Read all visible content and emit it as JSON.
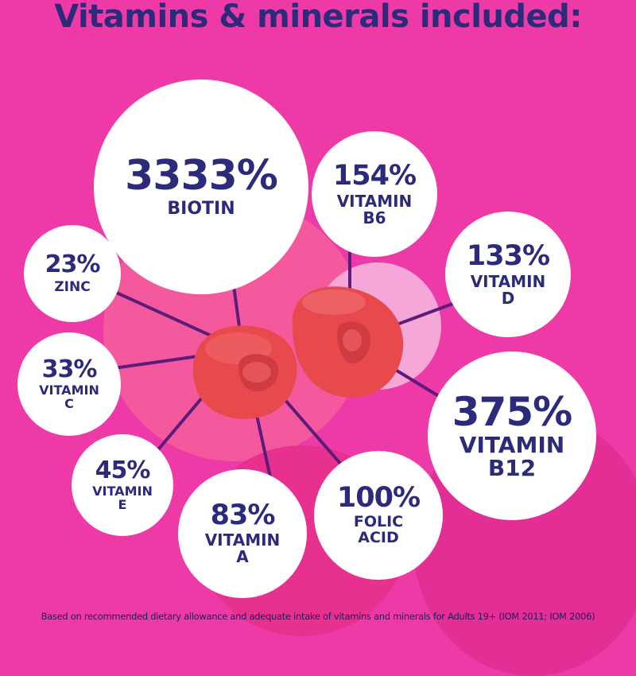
{
  "title": "Vitamins & minerals included:",
  "footnote": "Based on recommended dietary allowance and adequate intake of vitamins and minerals for Adults 19+ (IOM 2011; IOM 2006)",
  "colors": {
    "background": "#ee3aa6",
    "text": "#2c2a7a",
    "circle": "#ffffff",
    "spoke": "#5b1c7a",
    "gummy": "#e7494d"
  },
  "nutrients": {
    "biotin": {
      "percent": "3333%",
      "label": "BIOTIN"
    },
    "b6": {
      "percent": "154%",
      "label": "VITAMIN\nB6"
    },
    "d": {
      "percent": "133%",
      "label": "VITAMIN\nD"
    },
    "zinc": {
      "percent": "23%",
      "label": "ZINC"
    },
    "c": {
      "percent": "33%",
      "label": "VITAMIN\nC"
    },
    "b12": {
      "percent": "375%",
      "label": "VITAMIN\nB12"
    },
    "e": {
      "percent": "45%",
      "label": "VITAMIN\nE"
    },
    "a": {
      "percent": "83%",
      "label": "VITAMIN\nA"
    },
    "folic": {
      "percent": "100%",
      "label": "FOLIC\nACID"
    }
  }
}
